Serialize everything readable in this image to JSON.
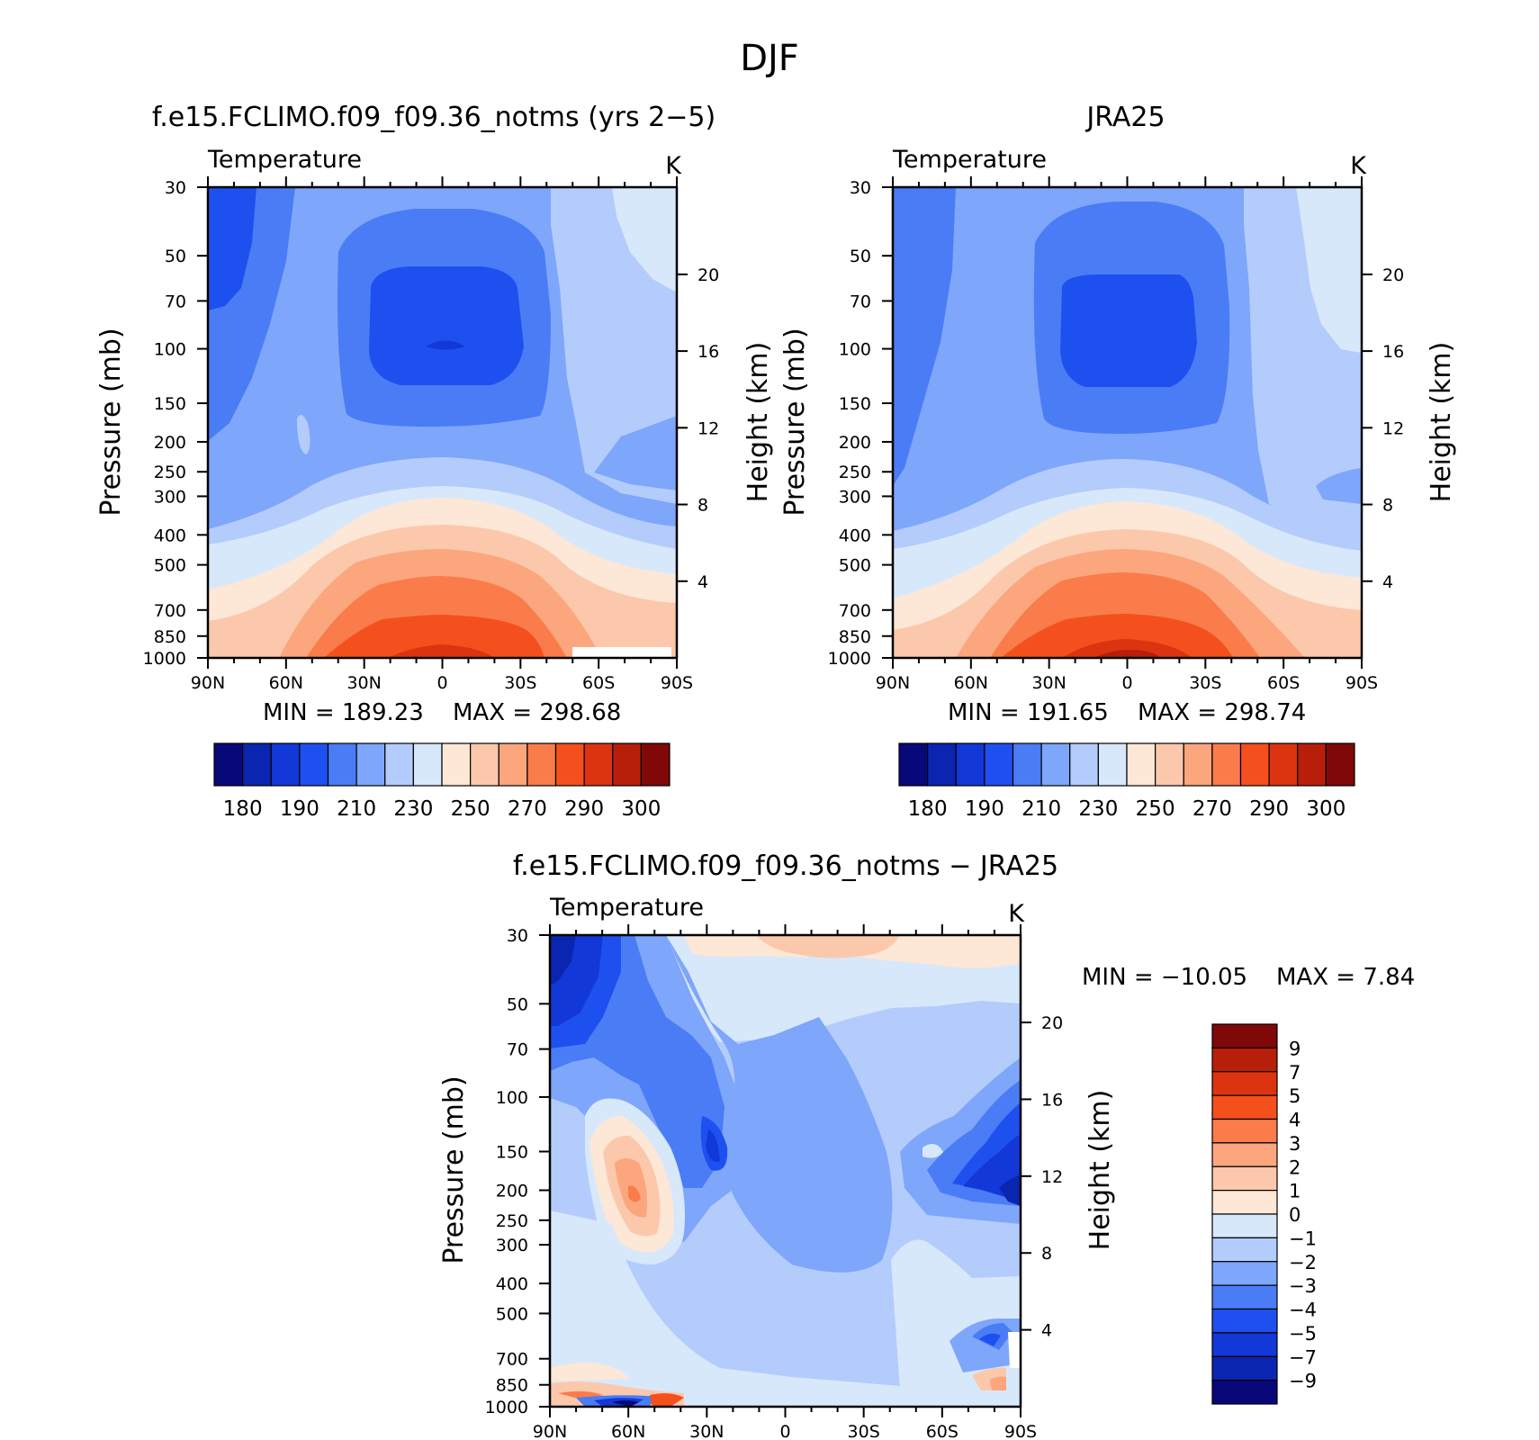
{
  "figure": {
    "title": "DJF"
  },
  "chart_data": [
    {
      "type": "heatmap",
      "title": "f.e15.FCLIMO.f09_f09.36_notms (yrs 2−5)",
      "subtitle_left": "Temperature",
      "subtitle_right": "K",
      "xlabel": "",
      "ylabel": "Pressure (mb)",
      "ylabel_right": "Height (km)",
      "x_ticks": [
        "90N",
        "60N",
        "30N",
        "0",
        "30S",
        "60S",
        "90S"
      ],
      "y_ticks": [
        "30",
        "50",
        "70",
        "100",
        "150",
        "200",
        "250",
        "300",
        "400",
        "500",
        "700",
        "850",
        "1000"
      ],
      "y_ticks_right": [
        "20",
        "16",
        "12",
        "8",
        "4"
      ],
      "y_scale": "log",
      "min_label": "MIN =  189.23",
      "max_label": "MAX =  298.68",
      "colorbar_labels": [
        "180",
        "190",
        "210",
        "230",
        "250",
        "270",
        "290",
        "300"
      ]
    },
    {
      "type": "heatmap",
      "title": "JRA25",
      "subtitle_left": "Temperature",
      "subtitle_right": "K",
      "xlabel": "",
      "ylabel": "Pressure (mb)",
      "ylabel_right": "Height (km)",
      "x_ticks": [
        "90N",
        "60N",
        "30N",
        "0",
        "30S",
        "60S",
        "90S"
      ],
      "y_ticks": [
        "30",
        "50",
        "70",
        "100",
        "150",
        "200",
        "250",
        "300",
        "400",
        "500",
        "700",
        "850",
        "1000"
      ],
      "y_ticks_right": [
        "20",
        "16",
        "12",
        "8",
        "4"
      ],
      "y_scale": "log",
      "min_label": "MIN =  191.65",
      "max_label": "MAX =  298.74",
      "colorbar_labels": [
        "180",
        "190",
        "210",
        "230",
        "250",
        "270",
        "290",
        "300"
      ]
    },
    {
      "type": "heatmap",
      "title": "f.e15.FCLIMO.f09_f09.36_notms − JRA25",
      "subtitle_left": "Temperature",
      "subtitle_right": "K",
      "xlabel": "",
      "ylabel": "Pressure (mb)",
      "ylabel_right": "Height (km)",
      "x_ticks": [
        "90N",
        "60N",
        "30N",
        "0",
        "30S",
        "60S",
        "90S"
      ],
      "y_ticks": [
        "30",
        "50",
        "70",
        "100",
        "150",
        "200",
        "250",
        "300",
        "400",
        "500",
        "700",
        "850",
        "1000"
      ],
      "y_ticks_right": [
        "20",
        "16",
        "12",
        "8",
        "4"
      ],
      "y_scale": "log",
      "min_label": "MIN = −10.05",
      "max_label": "MAX =     7.84",
      "colorbar_labels": [
        "9",
        "7",
        "5",
        "4",
        "3",
        "2",
        "1",
        "0",
        "−1",
        "−2",
        "−3",
        "−4",
        "−5",
        "−7",
        "−9"
      ]
    }
  ],
  "colors": {
    "abs_scale": [
      "#08087a",
      "#0a26b0",
      "#1238d8",
      "#1e50f0",
      "#4a7cf5",
      "#7ea6fa",
      "#b3ccfb",
      "#d8e8fb",
      "#fde7d6",
      "#fcc8ac",
      "#fca67e",
      "#fa7c4a",
      "#f4501d",
      "#dc3410",
      "#b81f0a",
      "#800808"
    ],
    "diff_scale": [
      "#800808",
      "#b81f0a",
      "#dc3410",
      "#f4501d",
      "#fa7c4a",
      "#fca67e",
      "#fcc8ac",
      "#fde7d6",
      "#d8e8fb",
      "#b3ccfb",
      "#7ea6fa",
      "#4a7cf5",
      "#1e50f0",
      "#1238d8",
      "#0a26b0",
      "#08087a"
    ]
  }
}
